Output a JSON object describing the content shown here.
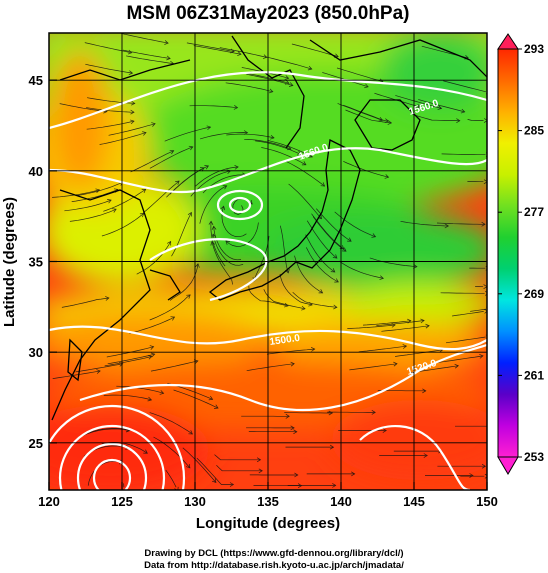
{
  "chart_data": {
    "type": "heatmap",
    "title": "MSM 06Z31May2023 (850.0hPa)",
    "xlabel": "Longitude (degrees)",
    "ylabel": "Latitude  (degrees)",
    "xlim": [
      120,
      150
    ],
    "ylim": [
      22.4,
      47.6
    ],
    "xticks": [
      "120",
      "125",
      "130",
      "135",
      "140",
      "145",
      "150"
    ],
    "yticks": [
      "25",
      "30",
      "35",
      "40",
      "45"
    ],
    "grid": true,
    "colorbar": {
      "ticks": [
        "253",
        "261",
        "269",
        "277",
        "285",
        "293"
      ],
      "range": [
        253,
        293
      ],
      "colors": [
        "#ff1fd2",
        "#c000e0",
        "#5a00c8",
        "#0020ff",
        "#0090ff",
        "#00e6e0",
        "#00d070",
        "#20d030",
        "#70e020",
        "#c8f000",
        "#f0f000",
        "#ffb000",
        "#ff6a00",
        "#ff2800"
      ]
    },
    "temperature_field_regions": [
      {
        "zone": "north (around 42N-47N)",
        "approx_value": 280
      },
      {
        "zone": "central Japan (35N-41N)",
        "approx_value": 276
      },
      {
        "zone": "south of Japan (31N-34N)",
        "approx_value": 287
      },
      {
        "zone": "subtropics (23N-30N)",
        "approx_value": 290
      }
    ],
    "contour_labels": [
      "1560.0",
      "1560.0",
      "1500.0",
      "1520.0"
    ],
    "overlays": [
      "streamlines",
      "geopotential height contours",
      "coastlines"
    ]
  },
  "credits": {
    "line1": "Drawing by DCL (https://www.gfd-dennou.org/library/dcl/)",
    "line2": "Data from http://database.rish.kyoto-u.ac.jp/arch/jmadata/"
  }
}
